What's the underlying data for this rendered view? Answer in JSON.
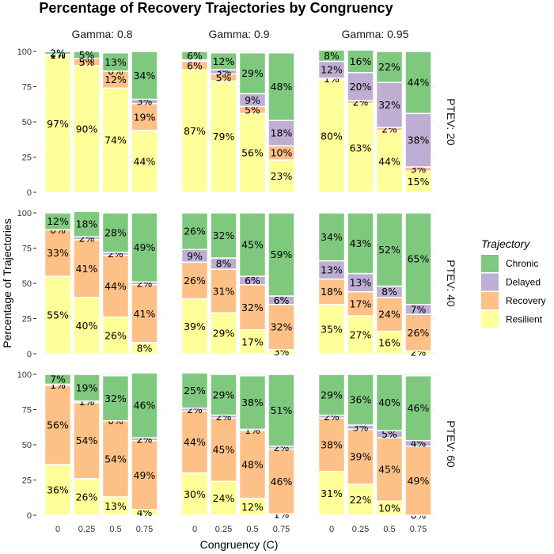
{
  "colors": {
    "Chronic": "#7fc97f",
    "Delayed": "#beaed4",
    "Recovery": "#fdc086",
    "Resilient": "#ffff99"
  },
  "chart_data": {
    "type": "bar",
    "stacked": true,
    "title": "Percentage of Recovery Trajectories by Congruency",
    "xlabel": "Congruency (C)",
    "ylabel": "Percentage of Trajectories",
    "ylim": [
      0,
      100
    ],
    "yticks": [
      "0",
      "25",
      "50",
      "75",
      "100"
    ],
    "categories": [
      "0",
      "0.25",
      "0.5",
      "0.75"
    ],
    "column_facets": [
      "Gamma: 0.8",
      "Gamma: 0.9",
      "Gamma: 0.95"
    ],
    "row_facets": [
      "PTEV: 20",
      "PTEV: 40",
      "PTEV: 60"
    ],
    "legend": {
      "title": "Trajectory",
      "position": "right",
      "entries": [
        "Chronic",
        "Delayed",
        "Recovery",
        "Resilient"
      ]
    },
    "stack_order": [
      "Resilient",
      "Recovery",
      "Delayed",
      "Chronic"
    ],
    "panels": [
      {
        "row": 0,
        "col": 0,
        "bars": [
          {
            "Resilient": 97,
            "Recovery": 1,
            "Delayed": 0,
            "Chronic": 2,
            "labels": {
              "Resilient": "97%",
              "Recovery": "1%",
              "Delayed": "0%",
              "Chronic": "2%"
            }
          },
          {
            "Resilient": 90,
            "Recovery": 5,
            "Delayed": 0,
            "Chronic": 5,
            "labels": {
              "Resilient": "90%",
              "Recovery": "5%",
              "Delayed": "0%",
              "Chronic": "5%"
            }
          },
          {
            "Resilient": 74,
            "Recovery": 12,
            "Delayed": 0,
            "Chronic": 13,
            "labels": {
              "Resilient": "74%",
              "Recovery": "12%",
              "Delayed": "0%",
              "Chronic": "13%"
            }
          },
          {
            "Resilient": 44,
            "Recovery": 19,
            "Delayed": 3,
            "Chronic": 34,
            "labels": {
              "Resilient": "44%",
              "Recovery": "19%",
              "Delayed": "3%",
              "Chronic": "34%"
            }
          }
        ]
      },
      {
        "row": 0,
        "col": 1,
        "bars": [
          {
            "Resilient": 87,
            "Recovery": 6,
            "Delayed": 1,
            "Chronic": 6,
            "labels": {
              "Resilient": "87%",
              "Recovery": "6%",
              "Delayed": "",
              "Chronic": "6%"
            }
          },
          {
            "Resilient": 79,
            "Recovery": 5,
            "Delayed": 3,
            "Chronic": 12,
            "labels": {
              "Resilient": "79%",
              "Recovery": "5%",
              "Delayed": "3%",
              "Chronic": "12%"
            }
          },
          {
            "Resilient": 56,
            "Recovery": 5,
            "Delayed": 9,
            "Chronic": 29,
            "labels": {
              "Resilient": "56%",
              "Recovery": "5%",
              "Delayed": "9%",
              "Chronic": "29%"
            }
          },
          {
            "Resilient": 23,
            "Recovery": 10,
            "Delayed": 18,
            "Chronic": 48,
            "labels": {
              "Resilient": "23%",
              "Recovery": "10%",
              "Delayed": "18%",
              "Chronic": "48%"
            }
          }
        ]
      },
      {
        "row": 0,
        "col": 2,
        "bars": [
          {
            "Resilient": 80,
            "Recovery": 1,
            "Delayed": 12,
            "Chronic": 8,
            "labels": {
              "Resilient": "80%",
              "Recovery": "1%",
              "Delayed": "12%",
              "Chronic": "8%"
            }
          },
          {
            "Resilient": 63,
            "Recovery": 2,
            "Delayed": 20,
            "Chronic": 16,
            "labels": {
              "Resilient": "63%",
              "Recovery": "2%",
              "Delayed": "20%",
              "Chronic": "16%"
            }
          },
          {
            "Resilient": 44,
            "Recovery": 2,
            "Delayed": 32,
            "Chronic": 22,
            "labels": {
              "Resilient": "44%",
              "Recovery": "2%",
              "Delayed": "32%",
              "Chronic": "22%"
            }
          },
          {
            "Resilient": 15,
            "Recovery": 3,
            "Delayed": 38,
            "Chronic": 44,
            "labels": {
              "Resilient": "15%",
              "Recovery": "3%",
              "Delayed": "38%",
              "Chronic": "44%"
            }
          }
        ]
      },
      {
        "row": 1,
        "col": 0,
        "bars": [
          {
            "Resilient": 55,
            "Recovery": 33,
            "Delayed": 0,
            "Chronic": 12,
            "labels": {
              "Resilient": "55%",
              "Recovery": "33%",
              "Delayed": "0%",
              "Chronic": "12%"
            }
          },
          {
            "Resilient": 40,
            "Recovery": 41,
            "Delayed": 2,
            "Chronic": 18,
            "labels": {
              "Resilient": "40%",
              "Recovery": "41%",
              "Delayed": "2%",
              "Chronic": "18%"
            }
          },
          {
            "Resilient": 26,
            "Recovery": 44,
            "Delayed": 2,
            "Chronic": 28,
            "labels": {
              "Resilient": "26%",
              "Recovery": "44%",
              "Delayed": "2%",
              "Chronic": "28%"
            }
          },
          {
            "Resilient": 8,
            "Recovery": 41,
            "Delayed": 2,
            "Chronic": 49,
            "labels": {
              "Resilient": "8%",
              "Recovery": "41%",
              "Delayed": "2%",
              "Chronic": "49%"
            }
          }
        ]
      },
      {
        "row": 1,
        "col": 1,
        "bars": [
          {
            "Resilient": 39,
            "Recovery": 26,
            "Delayed": 9,
            "Chronic": 26,
            "labels": {
              "Resilient": "39%",
              "Recovery": "26%",
              "Delayed": "9%",
              "Chronic": "26%"
            }
          },
          {
            "Resilient": 29,
            "Recovery": 31,
            "Delayed": 8,
            "Chronic": 32,
            "labels": {
              "Resilient": "29%",
              "Recovery": "31%",
              "Delayed": "8%",
              "Chronic": "32%"
            }
          },
          {
            "Resilient": 17,
            "Recovery": 32,
            "Delayed": 6,
            "Chronic": 45,
            "labels": {
              "Resilient": "17%",
              "Recovery": "32%",
              "Delayed": "6%",
              "Chronic": "45%"
            }
          },
          {
            "Resilient": 3,
            "Recovery": 32,
            "Delayed": 6,
            "Chronic": 59,
            "labels": {
              "Resilient": "3%",
              "Recovery": "32%",
              "Delayed": "6%",
              "Chronic": "59%"
            }
          }
        ]
      },
      {
        "row": 1,
        "col": 2,
        "bars": [
          {
            "Resilient": 35,
            "Recovery": 18,
            "Delayed": 13,
            "Chronic": 34,
            "labels": {
              "Resilient": "35%",
              "Recovery": "18%",
              "Delayed": "13%",
              "Chronic": "34%"
            }
          },
          {
            "Resilient": 27,
            "Recovery": 17,
            "Delayed": 13,
            "Chronic": 43,
            "labels": {
              "Resilient": "27%",
              "Recovery": "17%",
              "Delayed": "13%",
              "Chronic": "43%"
            }
          },
          {
            "Resilient": 16,
            "Recovery": 24,
            "Delayed": 8,
            "Chronic": 52,
            "labels": {
              "Resilient": "16%",
              "Recovery": "24%",
              "Delayed": "8%",
              "Chronic": "52%"
            }
          },
          {
            "Resilient": 2,
            "Recovery": 26,
            "Delayed": 7,
            "Chronic": 65,
            "labels": {
              "Resilient": "2%",
              "Recovery": "26%",
              "Delayed": "7%",
              "Chronic": "65%"
            }
          }
        ]
      },
      {
        "row": 2,
        "col": 0,
        "bars": [
          {
            "Resilient": 36,
            "Recovery": 56,
            "Delayed": 1,
            "Chronic": 7,
            "labels": {
              "Resilient": "36%",
              "Recovery": "56%",
              "Delayed": "1%",
              "Chronic": "7%"
            }
          },
          {
            "Resilient": 26,
            "Recovery": 54,
            "Delayed": 1,
            "Chronic": 19,
            "labels": {
              "Resilient": "26%",
              "Recovery": "54%",
              "Delayed": "1%",
              "Chronic": "19%"
            }
          },
          {
            "Resilient": 13,
            "Recovery": 54,
            "Delayed": 0,
            "Chronic": 32,
            "labels": {
              "Resilient": "13%",
              "Recovery": "54%",
              "Delayed": "0%",
              "Chronic": "32%"
            }
          },
          {
            "Resilient": 4,
            "Recovery": 49,
            "Delayed": 2,
            "Chronic": 46,
            "labels": {
              "Resilient": "4%",
              "Recovery": "49%",
              "Delayed": "2%",
              "Chronic": "46%"
            }
          }
        ]
      },
      {
        "row": 2,
        "col": 1,
        "bars": [
          {
            "Resilient": 30,
            "Recovery": 44,
            "Delayed": 2,
            "Chronic": 25,
            "labels": {
              "Resilient": "30%",
              "Recovery": "44%",
              "Delayed": "2%",
              "Chronic": "25%"
            }
          },
          {
            "Resilient": 24,
            "Recovery": 45,
            "Delayed": 2,
            "Chronic": 29,
            "labels": {
              "Resilient": "24%",
              "Recovery": "45%",
              "Delayed": "2%",
              "Chronic": "29%"
            }
          },
          {
            "Resilient": 12,
            "Recovery": 48,
            "Delayed": 1,
            "Chronic": 38,
            "labels": {
              "Resilient": "12%",
              "Recovery": "48%",
              "Delayed": "1%",
              "Chronic": "38%"
            }
          },
          {
            "Resilient": 1,
            "Recovery": 46,
            "Delayed": 2,
            "Chronic": 51,
            "labels": {
              "Resilient": "1%",
              "Recovery": "46%",
              "Delayed": "2%",
              "Chronic": "51%"
            }
          }
        ]
      },
      {
        "row": 2,
        "col": 2,
        "bars": [
          {
            "Resilient": 31,
            "Recovery": 38,
            "Delayed": 2,
            "Chronic": 29,
            "labels": {
              "Resilient": "31%",
              "Recovery": "38%",
              "Delayed": "2%",
              "Chronic": "29%"
            }
          },
          {
            "Resilient": 22,
            "Recovery": 39,
            "Delayed": 3,
            "Chronic": 36,
            "labels": {
              "Resilient": "22%",
              "Recovery": "39%",
              "Delayed": "3%",
              "Chronic": "36%"
            }
          },
          {
            "Resilient": 10,
            "Recovery": 45,
            "Delayed": 5,
            "Chronic": 40,
            "labels": {
              "Resilient": "10%",
              "Recovery": "45%",
              "Delayed": "5%",
              "Chronic": "40%"
            }
          },
          {
            "Resilient": 0,
            "Recovery": 49,
            "Delayed": 4,
            "Chronic": 46,
            "labels": {
              "Resilient": "0%",
              "Recovery": "49%",
              "Delayed": "4%",
              "Chronic": "46%"
            }
          }
        ]
      }
    ]
  }
}
